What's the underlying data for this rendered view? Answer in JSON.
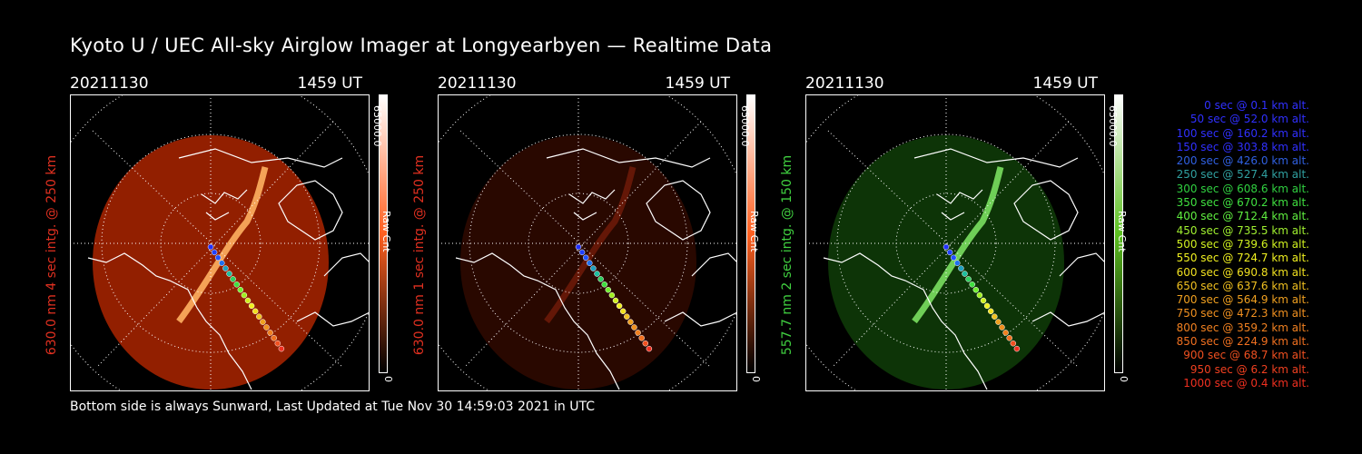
{
  "title": "Kyoto U / UEC All-sky Airglow Imager at Longyearbyen — Realtime Data",
  "footer": "Bottom side is always Sunward, Last Updated at Tue Nov 30 14:59:03 2021 in UTC",
  "panels": [
    {
      "date": "20211130",
      "time": "1459 UT",
      "label": "630.0 nm 4 sec intg. @ 250 km",
      "label_color": "#e03020",
      "cbar_max": "65000.0",
      "cbar_label": "Raw Cnt",
      "cbar_min": "0",
      "glow": "#c32a00",
      "glow_opacity": 0.75,
      "aurora": "#ffb060"
    },
    {
      "date": "20211130",
      "time": "1459 UT",
      "label": "630.0 nm 1 sec intg. @ 250 km",
      "label_color": "#e03020",
      "cbar_max": "65000.0",
      "cbar_label": "Raw Cnt",
      "cbar_min": "0",
      "glow": "#3a0c00",
      "glow_opacity": 0.7,
      "aurora": "#6a1a08"
    },
    {
      "date": "20211130",
      "time": "1459 UT",
      "label": "557.7 nm 2 sec intg. @ 150 km",
      "label_color": "#40d040",
      "cbar_max": "65000.0",
      "cbar_label": "Raw Cnt",
      "cbar_min": "0",
      "glow": "#0e3a08",
      "glow_opacity": 0.9,
      "aurora": "#7adf60"
    }
  ],
  "legend": [
    {
      "text": "0 sec @    0.1 km alt.",
      "color": "#3030ff"
    },
    {
      "text": "50 sec @   52.0 km alt.",
      "color": "#3030ff"
    },
    {
      "text": "100 sec @  160.2 km alt.",
      "color": "#3030ff"
    },
    {
      "text": "150 sec @  303.8 km alt.",
      "color": "#3030ff"
    },
    {
      "text": "200 sec @  426.0 km alt.",
      "color": "#3060e0"
    },
    {
      "text": "250 sec @  527.4 km alt.",
      "color": "#30a0a0"
    },
    {
      "text": "300 sec @  608.6 km alt.",
      "color": "#30d040"
    },
    {
      "text": "350 sec @  670.2 km alt.",
      "color": "#40e040"
    },
    {
      "text": "400 sec @  712.4 km alt.",
      "color": "#60f040"
    },
    {
      "text": "450 sec @  735.5 km alt.",
      "color": "#a0f030"
    },
    {
      "text": "500 sec @  739.6 km alt.",
      "color": "#d0f020"
    },
    {
      "text": "550 sec @  724.7 km alt.",
      "color": "#f0f020"
    },
    {
      "text": "600 sec @  690.8 km alt.",
      "color": "#f0e020"
    },
    {
      "text": "650 sec @  637.6 km alt.",
      "color": "#f0c020"
    },
    {
      "text": "700 sec @  564.9 km alt.",
      "color": "#f0a020"
    },
    {
      "text": "750 sec @  472.3 km alt.",
      "color": "#f09020"
    },
    {
      "text": "800 sec @  359.2 km alt.",
      "color": "#f08020"
    },
    {
      "text": "850 sec @  224.9 km alt.",
      "color": "#f07020"
    },
    {
      "text": "900 sec @   68.7 km alt.",
      "color": "#f05020"
    },
    {
      "text": "950 sec @    6.2 km alt.",
      "color": "#f04020"
    },
    {
      "text": "1000 sec @    0.4 km alt.",
      "color": "#f03020"
    }
  ],
  "track_colors": [
    "#2030ff",
    "#2040ff",
    "#2050ff",
    "#2070f0",
    "#20a0c0",
    "#20c0a0",
    "#30d060",
    "#40e040",
    "#70f030",
    "#a0f020",
    "#d0f020",
    "#f0f020",
    "#f0e020",
    "#f0c020",
    "#f0a020",
    "#f09020",
    "#f08020",
    "#f07020",
    "#f05020",
    "#f03020"
  ]
}
